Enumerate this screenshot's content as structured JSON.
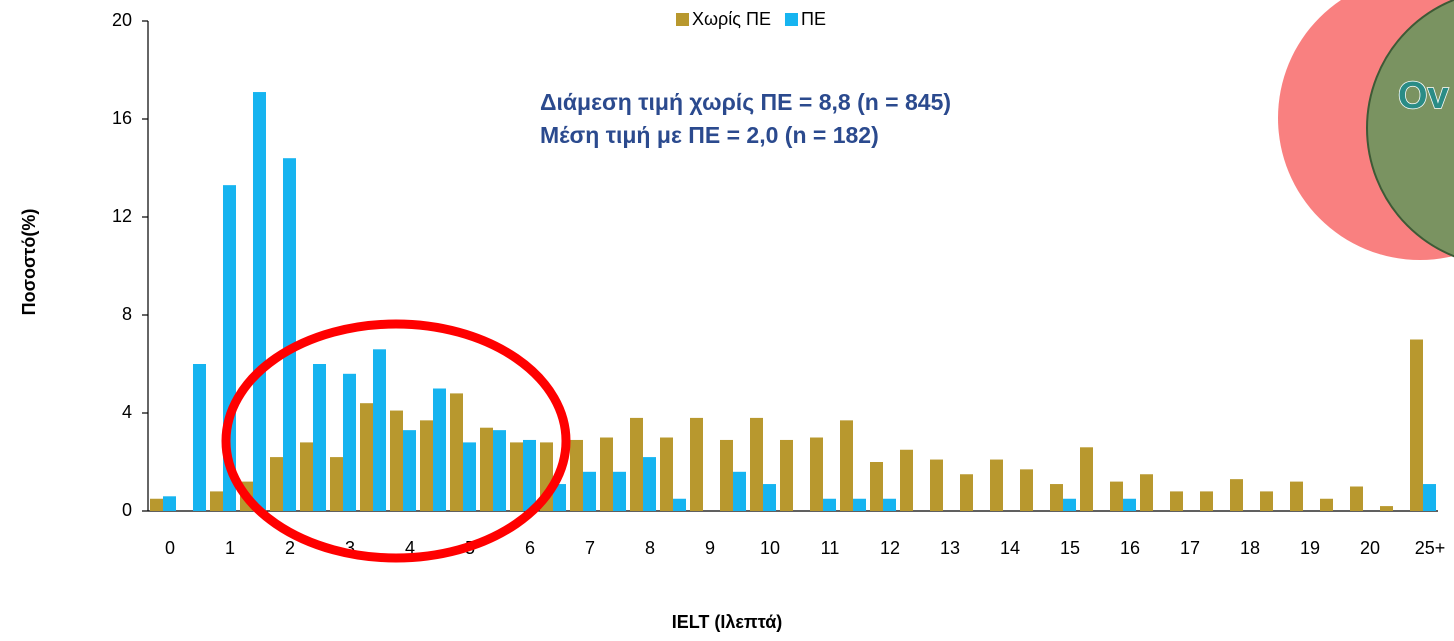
{
  "chart_data": {
    "type": "bar",
    "xlabel": "IELT (Ιλεπτά)",
    "ylabel": "Ποσοστό(%)",
    "annotations": [
      "Διάμεση τιμή χωρίς ΠΕ = 8,8 (n = 845)",
      "Μέση τιμή με ΠΕ = 2,0 (n = 182)"
    ],
    "overlay_text": "Ov",
    "legend": "top",
    "categories": [
      "0",
      null,
      "1",
      null,
      "2",
      null,
      "3",
      null,
      "4",
      null,
      "5",
      null,
      "6",
      null,
      "7",
      null,
      "8",
      null,
      "9",
      null,
      "10",
      null,
      "11",
      null,
      "12",
      null,
      "13",
      null,
      "14",
      null,
      "15",
      null,
      "16",
      null,
      "17",
      null,
      "18",
      null,
      "19",
      null,
      "20",
      null,
      "25+"
    ],
    "series": [
      {
        "name": "Χωρίς ΠΕ",
        "color": "#b8982e",
        "values": [
          0.5,
          0,
          0.8,
          1.2,
          2.2,
          2.8,
          2.2,
          4.4,
          4.1,
          3.7,
          4.8,
          3.4,
          2.8,
          2.8,
          2.9,
          3.0,
          3.8,
          3.0,
          3.8,
          2.9,
          3.8,
          2.9,
          3.0,
          3.7,
          2.0,
          2.5,
          2.1,
          1.5,
          2.1,
          1.7,
          1.1,
          2.6,
          1.2,
          1.5,
          0.8,
          0.8,
          1.3,
          0.8,
          1.2,
          0.5,
          1.0,
          0.2,
          7.0
        ]
      },
      {
        "name": "ΠΕ",
        "color": "#16b4f0",
        "values": [
          0.6,
          6.0,
          13.3,
          17.1,
          14.4,
          6.0,
          5.6,
          6.6,
          3.3,
          5.0,
          2.8,
          3.3,
          2.9,
          1.1,
          1.6,
          1.6,
          2.2,
          0.5,
          0,
          1.6,
          1.1,
          0,
          0.5,
          0.5,
          0.5,
          0,
          0,
          0,
          0,
          0,
          0.5,
          0,
          0.5,
          0,
          0,
          0,
          0,
          0,
          0,
          0,
          0,
          0,
          1.1
        ]
      }
    ],
    "ylim": [
      0,
      20
    ],
    "yticks": [
      0,
      4,
      8,
      12,
      16,
      20
    ],
    "grid": false
  }
}
